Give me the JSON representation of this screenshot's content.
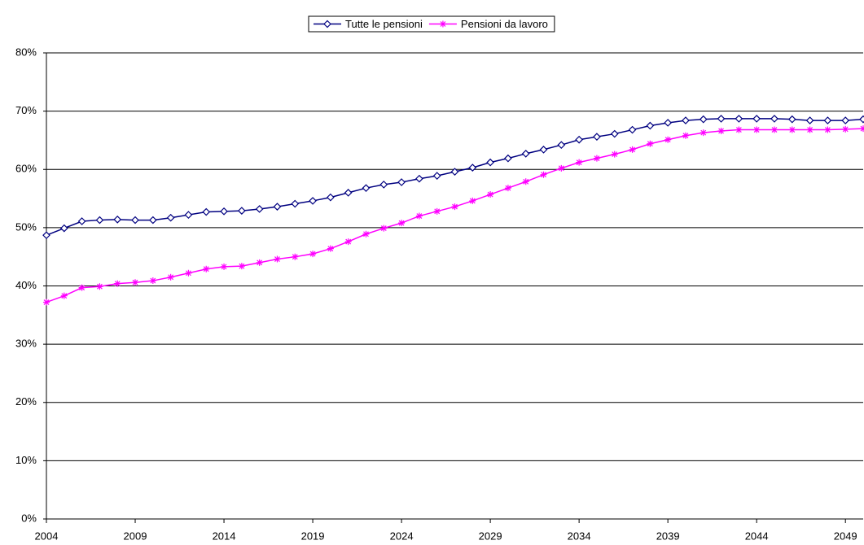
{
  "chart_data": {
    "type": "line",
    "x": [
      2004,
      2005,
      2006,
      2007,
      2008,
      2009,
      2010,
      2011,
      2012,
      2013,
      2014,
      2015,
      2016,
      2017,
      2018,
      2019,
      2020,
      2021,
      2022,
      2023,
      2024,
      2025,
      2026,
      2027,
      2028,
      2029,
      2030,
      2031,
      2032,
      2033,
      2034,
      2035,
      2036,
      2037,
      2038,
      2039,
      2040,
      2041,
      2042,
      2043,
      2044,
      2045,
      2046,
      2047,
      2048,
      2049,
      2050
    ],
    "series": [
      {
        "name": "Tutte le pensioni",
        "color": "#000080",
        "marker": "diamond",
        "values": [
          48.7,
          49.9,
          51.1,
          51.3,
          51.4,
          51.3,
          51.3,
          51.7,
          52.2,
          52.7,
          52.8,
          52.9,
          53.2,
          53.6,
          54.1,
          54.6,
          55.2,
          56.0,
          56.8,
          57.4,
          57.8,
          58.4,
          58.9,
          59.6,
          60.3,
          61.2,
          61.9,
          62.7,
          63.4,
          64.2,
          65.1,
          65.6,
          66.1,
          66.8,
          67.5,
          68.0,
          68.4,
          68.6,
          68.7,
          68.7,
          68.7,
          68.7,
          68.6,
          68.4,
          68.4,
          68.4,
          68.6
        ]
      },
      {
        "name": "Pensioni da lavoro",
        "color": "#ff00ff",
        "marker": "asterisk",
        "values": [
          37.2,
          38.3,
          39.7,
          39.9,
          40.4,
          40.6,
          40.9,
          41.5,
          42.2,
          42.9,
          43.3,
          43.4,
          44.0,
          44.6,
          45.0,
          45.5,
          46.4,
          47.6,
          48.9,
          49.9,
          50.8,
          52.0,
          52.8,
          53.6,
          54.6,
          55.7,
          56.8,
          57.9,
          59.1,
          60.2,
          61.2,
          61.9,
          62.6,
          63.4,
          64.4,
          65.1,
          65.8,
          66.3,
          66.6,
          66.8,
          66.8,
          66.8,
          66.8,
          66.8,
          66.8,
          66.9,
          67.0
        ]
      }
    ],
    "xlim": [
      2004,
      2050
    ],
    "xticks": [
      2004,
      2009,
      2014,
      2019,
      2024,
      2029,
      2034,
      2039,
      2044,
      2049
    ],
    "ylim": [
      0,
      80
    ],
    "yticks": [
      {
        "value": 0,
        "label": "0%"
      },
      {
        "value": 10,
        "label": "10%"
      },
      {
        "value": 20,
        "label": "20%"
      },
      {
        "value": 30,
        "label": "30%"
      },
      {
        "value": 40,
        "label": "40%"
      },
      {
        "value": 50,
        "label": "50%"
      },
      {
        "value": 60,
        "label": "60%"
      },
      {
        "value": 70,
        "label": "70%"
      },
      {
        "value": 80,
        "label": "80%"
      }
    ],
    "grid": true,
    "legend": "top"
  }
}
